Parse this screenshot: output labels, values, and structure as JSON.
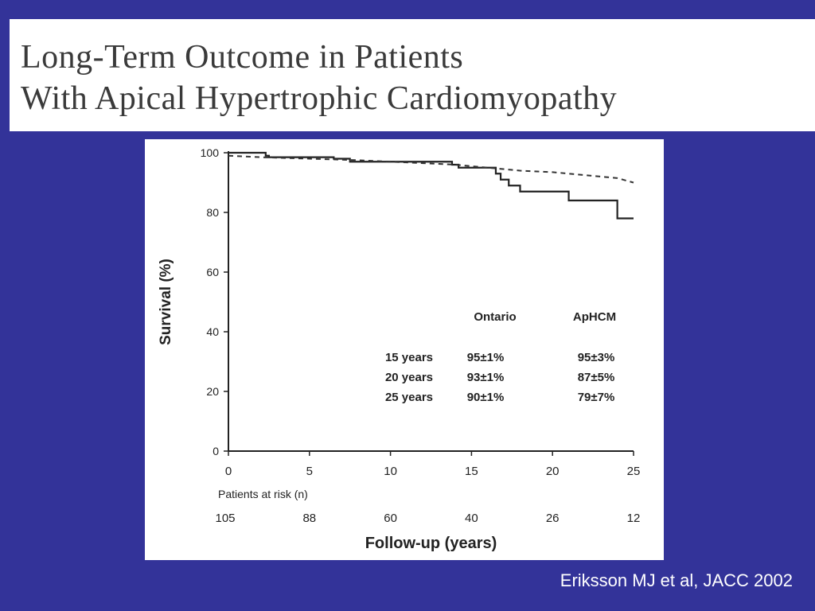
{
  "slide": {
    "title_line_1": "Long-Term Outcome in Patients",
    "title_line_2": "With Apical Hypertrophic Cardiomyopathy",
    "citation": "Eriksson MJ et al, JACC 2002",
    "background_color": "#333399"
  },
  "chart_data": {
    "type": "line",
    "title": "",
    "xlabel": "Follow-up (years)",
    "ylabel": "Survival (%)",
    "xlim": [
      0,
      25
    ],
    "ylim": [
      0,
      100
    ],
    "x_ticks": [
      0,
      5,
      10,
      15,
      20,
      25
    ],
    "y_ticks": [
      0,
      20,
      40,
      60,
      80,
      100
    ],
    "grid": false,
    "series": [
      {
        "style": "solid-step",
        "x": [
          0,
          2,
          2.3,
          2.5,
          6.5,
          7.5,
          11,
          13.8,
          14.2,
          16,
          16.5,
          16.8,
          17.3,
          18,
          21,
          24,
          24.3,
          25
        ],
        "y": [
          100,
          100,
          99,
          98.5,
          98,
          97,
          97,
          96,
          95,
          95,
          93,
          91,
          89,
          87,
          84,
          78,
          78,
          78
        ]
      },
      {
        "style": "dashed",
        "x": [
          0,
          2,
          5,
          8,
          10,
          12,
          14,
          16,
          18,
          20,
          22,
          24,
          25
        ],
        "y": [
          99,
          98.5,
          98,
          97.5,
          97,
          96.5,
          96,
          95,
          94,
          93.5,
          92.5,
          91.5,
          90
        ]
      }
    ],
    "inset_table": {
      "columns": [
        "Ontario",
        "ApHCM"
      ],
      "rows": [
        {
          "label": "15 years",
          "values": [
            "95±1%",
            "95±3%"
          ]
        },
        {
          "label": "20 years",
          "values": [
            "93±1%",
            "87±5%"
          ]
        },
        {
          "label": "25 years",
          "values": [
            "90±1%",
            "79±7%"
          ]
        }
      ]
    },
    "patients_at_risk": {
      "label": "Patients at risk (n)",
      "x": [
        0,
        5,
        10,
        15,
        20,
        25
      ],
      "values": [
        "105",
        "88",
        "60",
        "40",
        "26",
        "12"
      ]
    }
  }
}
